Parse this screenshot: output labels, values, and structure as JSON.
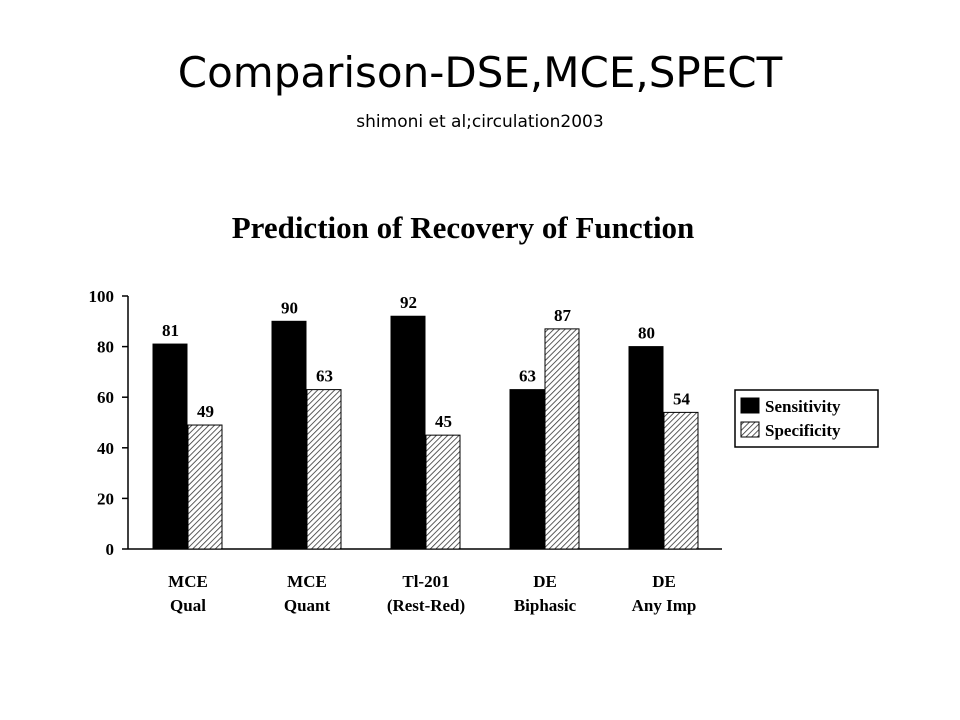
{
  "slide": {
    "title": "Comparison-DSE,MCE,SPECT",
    "subtitle": "shimoni et al;circulation2003"
  },
  "chart_data": {
    "type": "bar",
    "title": "Prediction of Recovery of Function",
    "xlabel": "",
    "ylabel": "",
    "ylim": [
      0,
      100
    ],
    "yticks": [
      0,
      20,
      40,
      60,
      80,
      100
    ],
    "grid": false,
    "legend_position": "right",
    "categories": [
      [
        "MCE",
        "Qual"
      ],
      [
        "MCE",
        "Quant"
      ],
      [
        "Tl-201",
        "(Rest-Red)"
      ],
      [
        "DE",
        "Biphasic"
      ],
      [
        "DE",
        "Any Imp"
      ]
    ],
    "series": [
      {
        "name": "Sensitivity",
        "values": [
          81,
          90,
          92,
          63,
          80
        ],
        "color": "#000000",
        "pattern": "solid"
      },
      {
        "name": "Specificity",
        "values": [
          49,
          63,
          45,
          87,
          54
        ],
        "color": "#555555",
        "pattern": "hatched"
      }
    ]
  }
}
